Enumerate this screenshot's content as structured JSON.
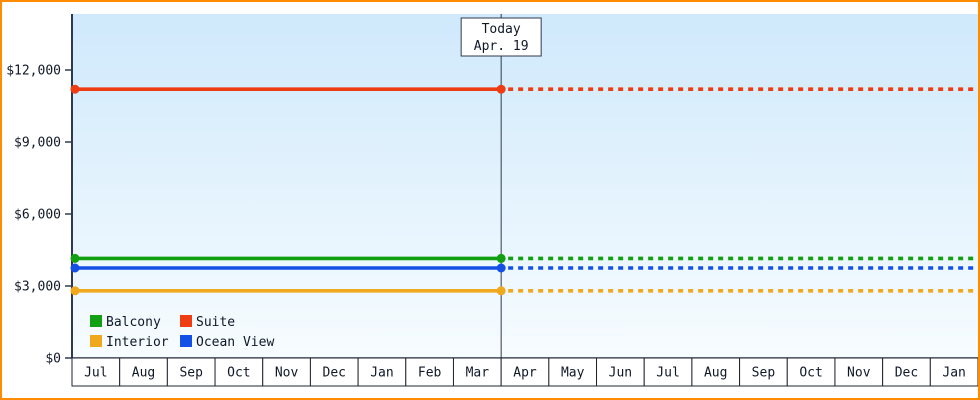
{
  "frame": {
    "border_color": "#ff8c00"
  },
  "chart": {
    "colors": {
      "axis": "#2f3a50",
      "cell_border": "#1f2430",
      "text": "#101828",
      "plot_top": "#cfe9fb",
      "plot_bottom": "#f7fcff",
      "box_bg": "#ffffff"
    }
  },
  "chart_data": {
    "type": "line",
    "x_months": [
      "Jul",
      "Aug",
      "Sep",
      "Oct",
      "Nov",
      "Dec",
      "Jan",
      "Feb",
      "Mar",
      "Apr",
      "May",
      "Jun",
      "Jul",
      "Aug",
      "Sep",
      "Oct",
      "Nov",
      "Dec",
      "Jan"
    ],
    "today": {
      "label": "Today",
      "date": "Apr. 19",
      "month_index": 9
    },
    "ylim": [
      0,
      12000
    ],
    "y_ticks": [
      {
        "value": 0,
        "label": "$0"
      },
      {
        "value": 3000,
        "label": "$3,000"
      },
      {
        "value": 6000,
        "label": "$6,000"
      },
      {
        "value": 9000,
        "label": "$9,000"
      },
      {
        "value": 12000,
        "label": "$12,000"
      }
    ],
    "series": [
      {
        "name": "Suite",
        "color": "#ee3d13",
        "value": 11200
      },
      {
        "name": "Balcony",
        "color": "#12a012",
        "value": 4150
      },
      {
        "name": "Ocean View",
        "color": "#1450e6",
        "value": 3750
      },
      {
        "name": "Interior",
        "color": "#f0a81c",
        "value": 2800
      }
    ],
    "line_style": {
      "before_today": "solid",
      "after_today": "dashed",
      "endpoint_dots": true,
      "width": 3.6
    },
    "legend": {
      "position": "bottom-left",
      "rows": [
        [
          "Balcony",
          "Suite"
        ],
        [
          "Interior",
          "Ocean View"
        ]
      ]
    },
    "grid": false
  }
}
